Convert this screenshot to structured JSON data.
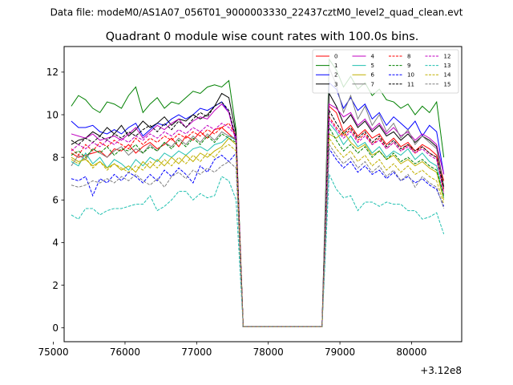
{
  "suptitle": "Data file: modeM0/AS1A07_056T01_9000003330_22437cztM0_level2_quad_clean.evt",
  "chart_data": {
    "type": "line",
    "title": "Quadrant 0 module wise count rates with 100.0s bins.",
    "xlabel": "",
    "ylabel": "",
    "x_offset_label": "+3.12e8",
    "x_offset": 312000000,
    "xlim": [
      75150,
      80700
    ],
    "ylim": [
      -0.65,
      13.2
    ],
    "xticks": [
      75000,
      76000,
      77000,
      78000,
      79000,
      80000
    ],
    "xtick_labels": [
      "75000",
      "76000",
      "77000",
      "78000",
      "79000",
      "80000"
    ],
    "yticks": [
      0,
      2,
      4,
      6,
      8,
      10,
      12
    ],
    "ytick_labels": [
      "0",
      "2",
      "4",
      "6",
      "8",
      "10",
      "12"
    ],
    "grid": false,
    "legend_position": "upper right",
    "legend_columns": 4,
    "x": [
      75250,
      75350,
      75450,
      75550,
      75650,
      75750,
      75850,
      75950,
      76050,
      76150,
      76250,
      76350,
      76450,
      76550,
      76650,
      76750,
      76850,
      76950,
      77050,
      77150,
      77250,
      77350,
      77450,
      77550,
      77650,
      77750,
      77850,
      77950,
      78050,
      78150,
      78250,
      78350,
      78450,
      78550,
      78650,
      78750,
      78850,
      78950,
      79050,
      79150,
      79250,
      79350,
      79450,
      79550,
      79650,
      79750,
      79850,
      79950,
      80050,
      80150,
      80250,
      80350,
      80450
    ],
    "series": [
      {
        "name": "0",
        "color": "#ff0000",
        "dash": "solid",
        "values": [
          8.2,
          8.0,
          8.1,
          8.2,
          8.3,
          8.0,
          8.4,
          8.3,
          8.6,
          8.2,
          8.5,
          8.7,
          8.4,
          8.6,
          8.9,
          8.5,
          9.0,
          8.8,
          9.2,
          8.9,
          9.3,
          9.4,
          9.1,
          8.8,
          0.05,
          0.05,
          0.05,
          0.05,
          0.05,
          0.05,
          0.05,
          0.05,
          0.05,
          0.05,
          0.05,
          0.05,
          10.4,
          10.1,
          9.2,
          9.5,
          9.0,
          9.3,
          8.9,
          9.1,
          8.6,
          8.9,
          8.5,
          8.7,
          8.3,
          8.6,
          8.4,
          8.1,
          6.9
        ]
      },
      {
        "name": "1",
        "color": "#008000",
        "dash": "solid",
        "values": [
          10.4,
          10.9,
          10.7,
          10.3,
          10.1,
          10.6,
          10.5,
          10.3,
          10.9,
          11.3,
          10.1,
          10.5,
          10.8,
          10.3,
          10.6,
          10.5,
          10.8,
          11.1,
          11.0,
          11.3,
          11.4,
          11.3,
          11.6,
          9.3,
          0.05,
          0.05,
          0.05,
          0.05,
          0.05,
          0.05,
          0.05,
          0.05,
          0.05,
          0.05,
          0.05,
          0.05,
          12.6,
          12.1,
          11.3,
          11.8,
          11.2,
          11.5,
          10.9,
          11.2,
          10.7,
          10.6,
          10.3,
          10.5,
          10.0,
          10.4,
          10.1,
          10.6,
          8.0
        ]
      },
      {
        "name": "2",
        "color": "#0000ff",
        "dash": "solid",
        "values": [
          9.7,
          9.4,
          9.4,
          9.5,
          9.2,
          9.1,
          9.3,
          9.1,
          9.4,
          9.6,
          9.0,
          9.3,
          9.6,
          9.5,
          9.8,
          10.0,
          9.8,
          10.0,
          10.3,
          10.2,
          10.4,
          10.6,
          10.1,
          8.8,
          0.05,
          0.05,
          0.05,
          0.05,
          0.05,
          0.05,
          0.05,
          0.05,
          0.05,
          0.05,
          0.05,
          0.05,
          11.5,
          11.2,
          10.3,
          10.8,
          10.2,
          10.5,
          9.8,
          10.1,
          9.5,
          9.9,
          9.6,
          9.3,
          9.7,
          9.0,
          9.5,
          9.2,
          7.2
        ]
      },
      {
        "name": "3",
        "color": "#000000",
        "dash": "solid",
        "values": [
          8.6,
          8.8,
          8.9,
          9.2,
          9.0,
          9.4,
          9.1,
          9.5,
          9.0,
          9.3,
          9.7,
          9.4,
          9.6,
          9.9,
          9.5,
          9.8,
          9.7,
          10.0,
          9.8,
          10.0,
          10.4,
          11.0,
          10.8,
          9.1,
          0.05,
          0.05,
          0.05,
          0.05,
          0.05,
          0.05,
          0.05,
          0.05,
          0.05,
          0.05,
          0.05,
          0.05,
          11.0,
          10.4,
          9.6,
          10.0,
          9.4,
          9.7,
          9.2,
          9.5,
          9.0,
          9.2,
          8.8,
          9.1,
          8.7,
          9.0,
          8.8,
          8.5,
          6.6
        ]
      },
      {
        "name": "4",
        "color": "#c000c0",
        "dash": "solid",
        "values": [
          9.1,
          9.0,
          8.9,
          9.1,
          8.8,
          8.9,
          9.0,
          8.8,
          9.1,
          9.4,
          8.9,
          9.2,
          9.5,
          9.3,
          9.6,
          9.8,
          9.4,
          9.7,
          9.9,
          9.8,
          10.2,
          10.5,
          10.1,
          8.7,
          0.05,
          0.05,
          0.05,
          0.05,
          0.05,
          0.05,
          0.05,
          0.05,
          0.05,
          0.05,
          0.05,
          0.05,
          10.5,
          10.3,
          9.9,
          10.1,
          9.5,
          9.8,
          9.3,
          9.6,
          9.1,
          9.4,
          9.0,
          9.2,
          8.8,
          9.1,
          8.9,
          8.6,
          7.2
        ]
      },
      {
        "name": "5",
        "color": "#20c0b0",
        "dash": "solid",
        "values": [
          7.8,
          7.6,
          8.2,
          7.7,
          8.0,
          7.5,
          7.9,
          7.7,
          7.4,
          7.9,
          7.6,
          8.0,
          7.8,
          8.2,
          8.0,
          8.3,
          8.1,
          8.4,
          8.5,
          8.3,
          8.6,
          8.7,
          9.0,
          8.8,
          0.05,
          0.05,
          0.05,
          0.05,
          0.05,
          0.05,
          0.05,
          0.05,
          0.05,
          0.05,
          0.05,
          0.05,
          9.6,
          9.2,
          8.6,
          9.0,
          8.5,
          8.7,
          8.2,
          8.5,
          8.0,
          8.3,
          8.1,
          8.4,
          7.9,
          8.2,
          7.8,
          7.6,
          6.1
        ]
      },
      {
        "name": "6",
        "color": "#c0b000",
        "dash": "solid",
        "values": [
          8.0,
          7.8,
          7.9,
          7.6,
          7.8,
          7.5,
          7.7,
          7.4,
          7.6,
          7.3,
          7.8,
          7.5,
          7.9,
          7.6,
          8.0,
          7.7,
          8.1,
          7.8,
          8.2,
          8.0,
          8.3,
          8.5,
          8.9,
          8.6,
          0.05,
          0.05,
          0.05,
          0.05,
          0.05,
          0.05,
          0.05,
          0.05,
          0.05,
          0.05,
          0.05,
          0.05,
          9.1,
          8.9,
          9.2,
          8.7,
          8.4,
          8.6,
          8.1,
          8.3,
          7.9,
          8.1,
          7.7,
          7.9,
          7.6,
          7.8,
          7.5,
          7.3,
          6.0
        ]
      },
      {
        "name": "7",
        "color": "#808080",
        "dash": "solid",
        "values": [
          7.6,
          8.1,
          7.9,
          8.4,
          8.2,
          8.0,
          8.3,
          8.5,
          8.1,
          8.4,
          8.2,
          8.6,
          8.3,
          8.7,
          8.5,
          8.9,
          8.6,
          9.0,
          8.7,
          9.1,
          8.8,
          9.2,
          9.0,
          8.9,
          0.05,
          0.05,
          0.05,
          0.05,
          0.05,
          0.05,
          0.05,
          0.05,
          0.05,
          0.05,
          0.05,
          0.05,
          12.2,
          11.4,
          10.1,
          10.9,
          9.8,
          10.4,
          9.5,
          10.0,
          9.2,
          9.6,
          8.9,
          9.3,
          8.6,
          9.0,
          8.7,
          8.4,
          6.5
        ]
      },
      {
        "name": "8",
        "color": "#ff0000",
        "dash": "dashed",
        "values": [
          8.4,
          8.1,
          8.6,
          8.3,
          8.7,
          8.5,
          8.8,
          8.6,
          8.4,
          8.9,
          8.6,
          8.9,
          8.7,
          9.0,
          8.8,
          9.1,
          8.9,
          9.2,
          9.0,
          9.3,
          9.1,
          9.4,
          9.6,
          9.0,
          0.05,
          0.05,
          0.05,
          0.05,
          0.05,
          0.05,
          0.05,
          0.05,
          0.05,
          0.05,
          0.05,
          0.05,
          9.9,
          9.4,
          9.0,
          9.3,
          8.8,
          9.1,
          8.6,
          8.9,
          8.4,
          8.7,
          8.3,
          8.6,
          8.2,
          8.5,
          8.2,
          8.0,
          6.4
        ]
      },
      {
        "name": "9",
        "color": "#008000",
        "dash": "dashed",
        "values": [
          8.1,
          8.3,
          8.0,
          8.4,
          8.2,
          8.5,
          8.1,
          8.4,
          8.3,
          8.6,
          8.2,
          8.5,
          8.3,
          8.7,
          8.4,
          8.8,
          8.5,
          8.9,
          8.6,
          9.0,
          8.7,
          9.1,
          8.9,
          8.7,
          0.05,
          0.05,
          0.05,
          0.05,
          0.05,
          0.05,
          0.05,
          0.05,
          0.05,
          0.05,
          0.05,
          0.05,
          9.4,
          8.8,
          8.3,
          8.6,
          8.2,
          8.5,
          8.0,
          8.3,
          7.9,
          8.2,
          7.8,
          8.0,
          7.7,
          7.9,
          7.6,
          7.4,
          6.2
        ]
      },
      {
        "name": "10",
        "color": "#0000ff",
        "dash": "dashed",
        "values": [
          7.0,
          6.9,
          7.1,
          6.2,
          7.0,
          6.8,
          7.2,
          6.9,
          7.3,
          7.1,
          6.8,
          7.2,
          6.9,
          7.4,
          7.1,
          7.5,
          7.2,
          6.8,
          7.6,
          7.3,
          7.9,
          8.1,
          7.8,
          8.2,
          0.05,
          0.05,
          0.05,
          0.05,
          0.05,
          0.05,
          0.05,
          0.05,
          0.05,
          0.05,
          0.05,
          0.05,
          8.4,
          7.9,
          7.5,
          7.8,
          7.3,
          7.6,
          7.2,
          7.4,
          7.0,
          7.3,
          6.9,
          7.1,
          6.8,
          7.0,
          6.7,
          6.5,
          5.7
        ]
      },
      {
        "name": "11",
        "color": "#000000",
        "dash": "dashed",
        "values": [
          8.8,
          8.6,
          8.9,
          8.7,
          9.0,
          8.8,
          9.1,
          8.9,
          9.2,
          9.0,
          9.3,
          9.5,
          9.2,
          9.6,
          9.3,
          9.7,
          9.4,
          9.8,
          10.1,
          9.9,
          10.4,
          10.6,
          10.2,
          8.9,
          0.05,
          0.05,
          0.05,
          0.05,
          0.05,
          0.05,
          0.05,
          0.05,
          0.05,
          0.05,
          0.05,
          0.05,
          10.2,
          9.6,
          9.1,
          9.4,
          8.9,
          9.2,
          8.7,
          9.0,
          8.5,
          8.8,
          8.4,
          8.6,
          8.3,
          8.5,
          8.2,
          8.0,
          6.6
        ]
      },
      {
        "name": "12",
        "color": "#c000c0",
        "dash": "dashed",
        "values": [
          8.3,
          8.6,
          8.4,
          8.7,
          8.5,
          8.8,
          8.6,
          8.9,
          8.7,
          9.0,
          8.8,
          9.1,
          8.9,
          9.2,
          9.0,
          9.3,
          9.1,
          9.4,
          9.2,
          9.5,
          9.3,
          9.6,
          9.4,
          9.0,
          0.05,
          0.05,
          0.05,
          0.05,
          0.05,
          0.05,
          0.05,
          0.05,
          0.05,
          0.05,
          0.05,
          0.05,
          9.8,
          9.3,
          8.9,
          9.2,
          8.7,
          9.0,
          8.6,
          8.8,
          8.4,
          8.7,
          8.3,
          8.5,
          8.2,
          8.4,
          8.1,
          7.9,
          6.3
        ]
      },
      {
        "name": "13",
        "color": "#20c0b0",
        "dash": "dashed",
        "values": [
          5.3,
          5.1,
          5.6,
          5.6,
          5.3,
          5.5,
          5.6,
          5.6,
          5.7,
          5.8,
          5.8,
          6.2,
          5.5,
          5.7,
          6.0,
          6.4,
          6.4,
          6.0,
          6.3,
          6.1,
          6.2,
          7.1,
          6.9,
          6.0,
          0.05,
          0.05,
          0.05,
          0.05,
          0.05,
          0.05,
          0.05,
          0.05,
          0.05,
          0.05,
          0.05,
          0.05,
          7.2,
          6.5,
          6.1,
          6.2,
          5.5,
          5.9,
          5.9,
          5.7,
          5.9,
          5.8,
          5.8,
          5.5,
          5.5,
          5.1,
          5.2,
          5.4,
          4.4
        ]
      },
      {
        "name": "14",
        "color": "#c0b000",
        "dash": "dashed",
        "values": [
          7.9,
          7.7,
          8.0,
          7.5,
          7.8,
          7.4,
          7.7,
          7.5,
          7.3,
          7.6,
          7.4,
          7.8,
          7.5,
          7.9,
          7.6,
          8.0,
          7.7,
          8.1,
          7.8,
          8.2,
          8.0,
          8.4,
          8.6,
          8.3,
          0.05,
          0.05,
          0.05,
          0.05,
          0.05,
          0.05,
          0.05,
          0.05,
          0.05,
          0.05,
          0.05,
          0.05,
          8.9,
          8.4,
          8.0,
          8.3,
          7.8,
          8.1,
          7.6,
          7.9,
          7.4,
          7.7,
          7.3,
          7.6,
          7.2,
          7.4,
          7.1,
          6.9,
          5.8
        ]
      },
      {
        "name": "15",
        "color": "#808080",
        "dash": "dashed",
        "values": [
          6.7,
          6.6,
          6.7,
          6.9,
          6.8,
          7.0,
          6.8,
          7.1,
          6.9,
          7.2,
          6.9,
          6.7,
          7.0,
          6.6,
          7.1,
          7.3,
          7.0,
          7.4,
          7.2,
          7.5,
          7.3,
          7.6,
          7.8,
          7.5,
          0.05,
          0.05,
          0.05,
          0.05,
          0.05,
          0.05,
          0.05,
          0.05,
          0.05,
          0.05,
          0.05,
          0.05,
          8.6,
          8.1,
          7.7,
          8.0,
          7.5,
          7.8,
          7.3,
          7.6,
          7.1,
          7.4,
          6.9,
          7.2,
          6.6,
          7.1,
          6.8,
          6.6,
          5.6
        ]
      }
    ]
  }
}
